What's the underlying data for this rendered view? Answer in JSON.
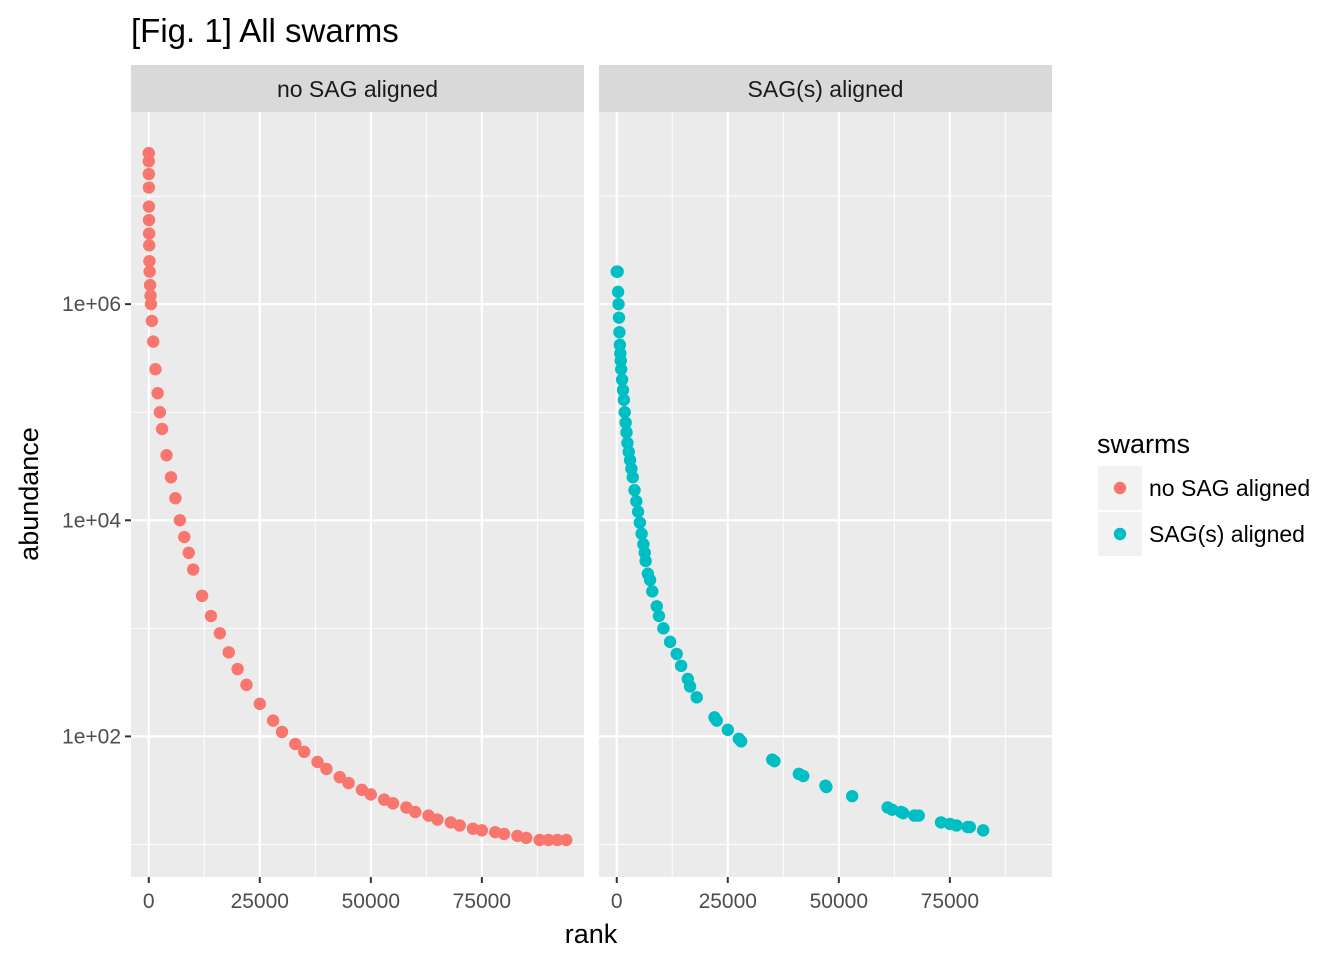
{
  "chart_data": {
    "type": "scatter",
    "title": "[Fig. 1] All swarms",
    "xlabel": "rank",
    "ylabel": "abundance",
    "x_scale": "linear",
    "y_scale": "log10",
    "xlim": [
      -4000,
      98000
    ],
    "ylim": [
      5,
      60000000
    ],
    "x_ticks": [
      0,
      25000,
      50000,
      75000
    ],
    "x_tick_labels": [
      "0",
      "25000",
      "50000",
      "75000"
    ],
    "y_ticks": [
      100,
      10000,
      1000000
    ],
    "y_tick_labels": [
      "1e+02",
      "1e+04",
      "1e+06"
    ],
    "grid": true,
    "legend": {
      "title": "swarms",
      "position": "right",
      "entries": [
        {
          "label": "no SAG aligned",
          "color": "#F8766D"
        },
        {
          "label": "SAG(s) aligned",
          "color": "#00BFC4"
        }
      ]
    },
    "facets": [
      {
        "strip_label": "no SAG aligned",
        "series": "no SAG aligned",
        "color": "#F8766D",
        "points": [
          [
            0,
            25000000
          ],
          [
            0,
            21000000
          ],
          [
            20,
            16000000
          ],
          [
            30,
            12000000
          ],
          [
            40,
            8000000
          ],
          [
            60,
            6000000
          ],
          [
            80,
            4500000
          ],
          [
            100,
            3500000
          ],
          [
            150,
            2500000
          ],
          [
            200,
            2000000
          ],
          [
            300,
            1500000
          ],
          [
            400,
            1200000
          ],
          [
            500,
            1000000
          ],
          [
            700,
            700000
          ],
          [
            1000,
            450000
          ],
          [
            1500,
            250000
          ],
          [
            2000,
            150000
          ],
          [
            2500,
            100000
          ],
          [
            3000,
            70000
          ],
          [
            4000,
            40000
          ],
          [
            5000,
            25000
          ],
          [
            6000,
            16000
          ],
          [
            7000,
            10000
          ],
          [
            8000,
            7000
          ],
          [
            9000,
            5000
          ],
          [
            10000,
            3500
          ],
          [
            12000,
            2000
          ],
          [
            14000,
            1300
          ],
          [
            16000,
            900
          ],
          [
            18000,
            600
          ],
          [
            20000,
            420
          ],
          [
            22000,
            300
          ],
          [
            25000,
            200
          ],
          [
            28000,
            140
          ],
          [
            30000,
            110
          ],
          [
            33000,
            85
          ],
          [
            35000,
            72
          ],
          [
            38000,
            58
          ],
          [
            40000,
            50
          ],
          [
            43000,
            42
          ],
          [
            45000,
            37
          ],
          [
            48000,
            32
          ],
          [
            50000,
            29
          ],
          [
            53000,
            26
          ],
          [
            55000,
            24
          ],
          [
            58000,
            22
          ],
          [
            60000,
            20
          ],
          [
            63000,
            18.5
          ],
          [
            65000,
            17
          ],
          [
            68000,
            16
          ],
          [
            70000,
            15
          ],
          [
            73000,
            14
          ],
          [
            75000,
            13.5
          ],
          [
            78000,
            13
          ],
          [
            80000,
            12.5
          ],
          [
            83000,
            12
          ],
          [
            85000,
            11.5
          ],
          [
            88000,
            11
          ],
          [
            90000,
            11
          ],
          [
            92000,
            11
          ],
          [
            94000,
            11
          ]
        ]
      },
      {
        "strip_label": "SAG(s) aligned",
        "series": "SAG(s) aligned",
        "color": "#00BFC4",
        "points": [
          [
            0,
            2000000
          ],
          [
            200,
            2000000
          ],
          [
            300,
            1300000
          ],
          [
            400,
            1000000
          ],
          [
            500,
            750000
          ],
          [
            600,
            550000
          ],
          [
            700,
            420000
          ],
          [
            800,
            350000
          ],
          [
            900,
            300000
          ],
          [
            1000,
            250000
          ],
          [
            1200,
            200000
          ],
          [
            1400,
            160000
          ],
          [
            1600,
            130000
          ],
          [
            1800,
            100000
          ],
          [
            2000,
            80000
          ],
          [
            2200,
            65000
          ],
          [
            2400,
            52000
          ],
          [
            2700,
            43000
          ],
          [
            3000,
            36000
          ],
          [
            3300,
            30000
          ],
          [
            3600,
            25000
          ],
          [
            4000,
            19000
          ],
          [
            4400,
            15000
          ],
          [
            4800,
            12000
          ],
          [
            5200,
            9500
          ],
          [
            5600,
            7500
          ],
          [
            6000,
            6000
          ],
          [
            6300,
            5000
          ],
          [
            6500,
            4200
          ],
          [
            7000,
            3200
          ],
          [
            7500,
            2800
          ],
          [
            8000,
            2200
          ],
          [
            9000,
            1600
          ],
          [
            9500,
            1300
          ],
          [
            10500,
            1000
          ],
          [
            12000,
            750
          ],
          [
            13500,
            580
          ],
          [
            14500,
            450
          ],
          [
            16000,
            340
          ],
          [
            16500,
            290
          ],
          [
            18000,
            230
          ],
          [
            22000,
            150
          ],
          [
            22500,
            140
          ],
          [
            25000,
            115
          ],
          [
            27500,
            95
          ],
          [
            28000,
            90
          ],
          [
            35000,
            61
          ],
          [
            35500,
            59
          ],
          [
            41000,
            45
          ],
          [
            42000,
            43
          ],
          [
            47000,
            35
          ],
          [
            47200,
            34
          ],
          [
            53000,
            28
          ],
          [
            61000,
            22
          ],
          [
            62000,
            21
          ],
          [
            64000,
            20
          ],
          [
            64500,
            19.5
          ],
          [
            67000,
            18.5
          ],
          [
            68000,
            18.5
          ],
          [
            73000,
            16
          ],
          [
            75000,
            15.5
          ],
          [
            76500,
            15
          ],
          [
            79000,
            14.5
          ],
          [
            79500,
            14.5
          ],
          [
            82500,
            13.5
          ]
        ]
      }
    ]
  }
}
